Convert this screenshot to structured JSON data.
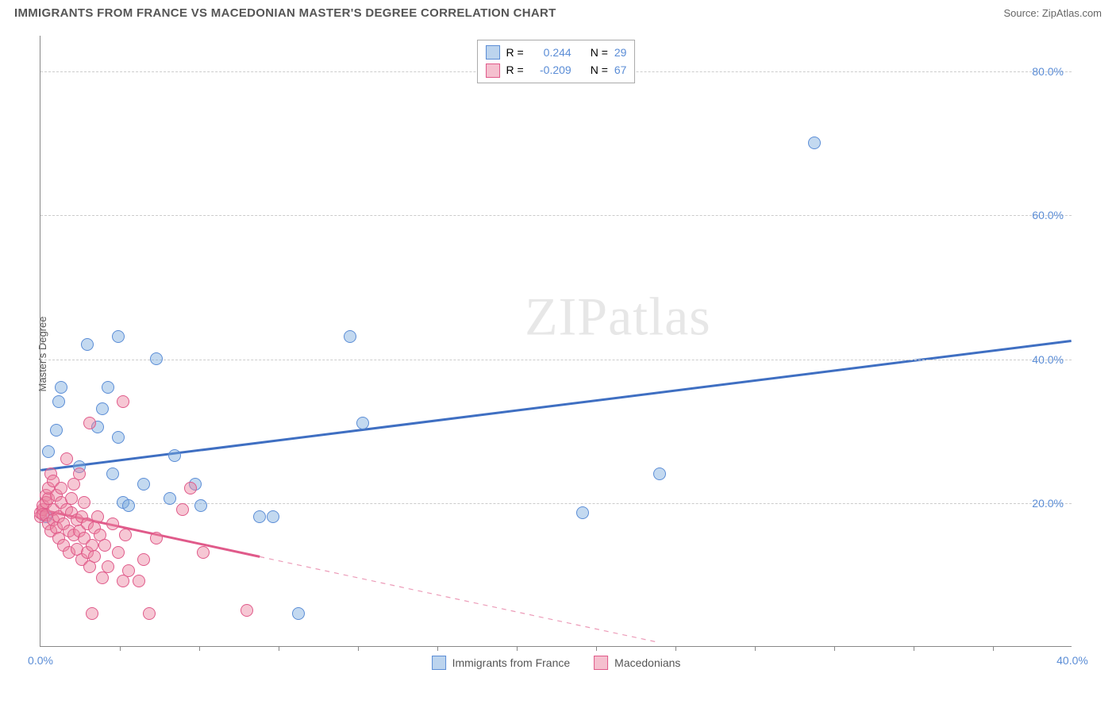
{
  "header": {
    "title": "IMMIGRANTS FROM FRANCE VS MACEDONIAN MASTER'S DEGREE CORRELATION CHART",
    "source": "Source: ZipAtlas.com"
  },
  "watermark": "ZIPatlas",
  "chart": {
    "type": "scatter",
    "ylabel": "Master's Degree",
    "background_color": "#ffffff",
    "grid_color": "#cccccc",
    "axis_color": "#888888",
    "tick_label_color": "#5b8dd6",
    "xlim": [
      0,
      40
    ],
    "ylim": [
      0,
      85
    ],
    "yticks": [
      {
        "v": 20,
        "label": "20.0%"
      },
      {
        "v": 40,
        "label": "40.0%"
      },
      {
        "v": 60,
        "label": "60.0%"
      },
      {
        "v": 80,
        "label": "80.0%"
      }
    ],
    "xticks_minor": [
      3.08,
      6.15,
      9.23,
      12.31,
      15.38,
      18.46,
      21.54,
      24.62,
      27.69,
      30.77,
      33.85,
      36.92
    ],
    "xticks_labeled": [
      {
        "v": 0,
        "label": "0.0%"
      },
      {
        "v": 40,
        "label": "40.0%"
      }
    ],
    "legend_top": [
      {
        "swatch": "blue",
        "r_label": "R =",
        "r": "0.244",
        "n_label": "N =",
        "n": "29"
      },
      {
        "swatch": "pink",
        "r_label": "R =",
        "r": "-0.209",
        "n_label": "N =",
        "n": "67"
      }
    ],
    "legend_bottom": [
      {
        "swatch": "blue",
        "label": "Immigrants from France"
      },
      {
        "swatch": "pink",
        "label": "Macedonians"
      }
    ],
    "series": [
      {
        "name": "france",
        "color_fill": "rgba(122,170,222,0.45)",
        "color_stroke": "#5b8dd6",
        "marker_radius": 8,
        "trend": {
          "x1": 0,
          "y1": 24.5,
          "x2": 40,
          "y2": 42.5,
          "color": "#3f6fc2",
          "width": 3,
          "solid_until_x": 40
        },
        "points": [
          [
            0.2,
            18.0
          ],
          [
            0.3,
            27.0
          ],
          [
            0.6,
            30.0
          ],
          [
            0.7,
            34.0
          ],
          [
            0.8,
            36.0
          ],
          [
            1.5,
            25.0
          ],
          [
            1.8,
            42.0
          ],
          [
            2.2,
            30.5
          ],
          [
            2.4,
            33.0
          ],
          [
            2.6,
            36.0
          ],
          [
            2.8,
            24.0
          ],
          [
            3.0,
            29.0
          ],
          [
            3.0,
            43.0
          ],
          [
            3.2,
            20.0
          ],
          [
            3.4,
            19.5
          ],
          [
            4.0,
            22.5
          ],
          [
            4.5,
            40.0
          ],
          [
            5.0,
            20.5
          ],
          [
            5.2,
            26.5
          ],
          [
            6.0,
            22.5
          ],
          [
            6.2,
            19.5
          ],
          [
            8.5,
            18.0
          ],
          [
            9.0,
            18.0
          ],
          [
            10.0,
            4.5
          ],
          [
            12.0,
            43.0
          ],
          [
            12.5,
            31.0
          ],
          [
            21.0,
            18.5
          ],
          [
            24.0,
            24.0
          ],
          [
            30.0,
            70.0
          ]
        ]
      },
      {
        "name": "macedonians",
        "color_fill": "rgba(235,130,160,0.45)",
        "color_stroke": "#e05a8a",
        "marker_radius": 8,
        "trend": {
          "x1": 0,
          "y1": 19.0,
          "x2": 24,
          "y2": 0.5,
          "color": "#e05a8a",
          "width": 3,
          "solid_until_x": 8.5
        },
        "points": [
          [
            0.0,
            18.0
          ],
          [
            0.0,
            18.5
          ],
          [
            0.1,
            19.0
          ],
          [
            0.1,
            19.5
          ],
          [
            0.1,
            18.3
          ],
          [
            0.2,
            21.0
          ],
          [
            0.2,
            20.0
          ],
          [
            0.2,
            18.2
          ],
          [
            0.3,
            20.5
          ],
          [
            0.3,
            22.0
          ],
          [
            0.3,
            17.0
          ],
          [
            0.4,
            24.0
          ],
          [
            0.4,
            16.0
          ],
          [
            0.5,
            19.0
          ],
          [
            0.5,
            17.5
          ],
          [
            0.5,
            23.0
          ],
          [
            0.6,
            21.0
          ],
          [
            0.6,
            16.5
          ],
          [
            0.7,
            18.0
          ],
          [
            0.7,
            15.0
          ],
          [
            0.8,
            20.0
          ],
          [
            0.8,
            22.0
          ],
          [
            0.9,
            17.0
          ],
          [
            0.9,
            14.0
          ],
          [
            1.0,
            19.0
          ],
          [
            1.0,
            26.0
          ],
          [
            1.1,
            13.0
          ],
          [
            1.1,
            16.0
          ],
          [
            1.2,
            18.5
          ],
          [
            1.2,
            20.5
          ],
          [
            1.3,
            15.5
          ],
          [
            1.3,
            22.5
          ],
          [
            1.4,
            17.5
          ],
          [
            1.4,
            13.5
          ],
          [
            1.5,
            16.0
          ],
          [
            1.5,
            24.0
          ],
          [
            1.6,
            12.0
          ],
          [
            1.6,
            18.0
          ],
          [
            1.7,
            15.0
          ],
          [
            1.7,
            20.0
          ],
          [
            1.8,
            13.0
          ],
          [
            1.8,
            17.0
          ],
          [
            1.9,
            11.0
          ],
          [
            1.9,
            31.0
          ],
          [
            2.0,
            14.0
          ],
          [
            2.0,
            4.5
          ],
          [
            2.1,
            16.5
          ],
          [
            2.1,
            12.5
          ],
          [
            2.2,
            18.0
          ],
          [
            2.3,
            15.5
          ],
          [
            2.4,
            9.5
          ],
          [
            2.5,
            14.0
          ],
          [
            2.6,
            11.0
          ],
          [
            2.8,
            17.0
          ],
          [
            3.0,
            13.0
          ],
          [
            3.2,
            34.0
          ],
          [
            3.2,
            9.0
          ],
          [
            3.3,
            15.5
          ],
          [
            3.4,
            10.5
          ],
          [
            3.8,
            9.0
          ],
          [
            4.0,
            12.0
          ],
          [
            4.2,
            4.5
          ],
          [
            4.5,
            15.0
          ],
          [
            5.5,
            19.0
          ],
          [
            5.8,
            22.0
          ],
          [
            6.3,
            13.0
          ],
          [
            8.0,
            5.0
          ]
        ]
      }
    ]
  }
}
